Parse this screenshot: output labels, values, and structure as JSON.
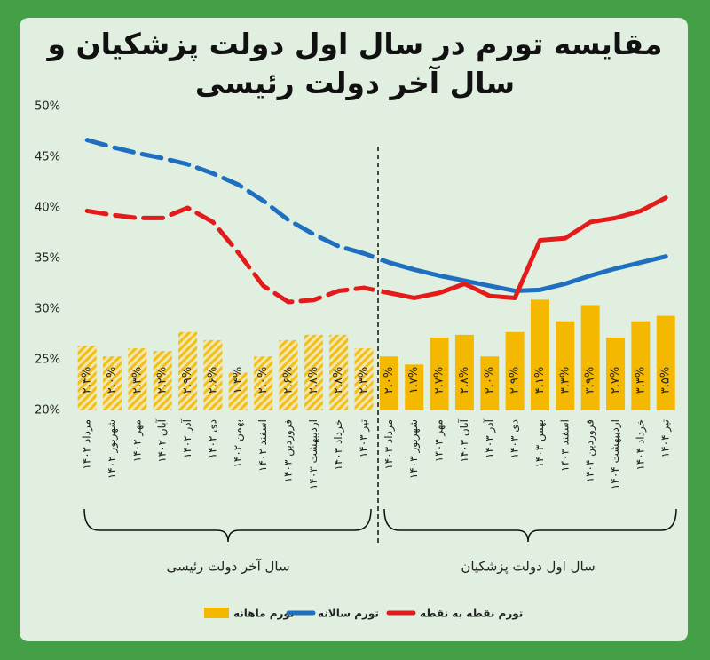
{
  "chart_data": {
    "type": "bar-line",
    "title": "مقایسه تورم در سال اول دولت پزشکیان و سال آخر دولت رئیسی",
    "groups": [
      {
        "label": "سال آخر دولت رئیسی",
        "categories": [
          "مرداد ۱۴۰۲",
          "شهریور ۱۴۰۲",
          "مهر ۱۴۰۲",
          "آبان ۱۴۰۲",
          "آذر ۱۴۰۲",
          "دی ۱۴۰۲",
          "بهمن ۱۴۰۲",
          "اسفند ۱۴۰۲",
          "فروردین ۱۴۰۳",
          "اردیبهشت ۱۴۰۳",
          "خرداد ۱۴۰۳",
          "تیر ۱۴۰۳"
        ]
      },
      {
        "label": "سال اول دولت پزشکیان",
        "categories": [
          "مرداد ۱۴۰۳",
          "شهریور ۱۴۰۳",
          "مهر ۱۴۰۳",
          "آبان ۱۴۰۳",
          "آذر ۱۴۰۳",
          "دی ۱۴۰۳",
          "بهمن ۱۴۰۳",
          "اسفند ۱۴۰۳",
          "فروردین ۱۴۰۴",
          "اردیبهشت ۱۴۰۴",
          "خرداد ۱۴۰۴",
          "تیر ۱۴۰۴"
        ]
      }
    ],
    "series": [
      {
        "name": "تورم ماهانه",
        "type": "bar",
        "axis": "y2",
        "color": "#f5b800",
        "values": [
          2.4,
          2.0,
          2.3,
          2.2,
          2.9,
          2.6,
          1.4,
          2.0,
          2.6,
          2.8,
          2.8,
          2.3,
          2.0,
          1.7,
          2.7,
          2.8,
          2.0,
          2.9,
          4.1,
          3.3,
          3.9,
          2.7,
          3.3,
          3.5
        ],
        "value_labels": [
          "۲.۴%",
          "۲.۰%",
          "۲.۳%",
          "۲.۲%",
          "۲.۹%",
          "۲.۶%",
          "۱.۴%",
          "۲.۰%",
          "۲.۶%",
          "۲.۸%",
          "۲.۸%",
          "۲.۳%",
          "۲.۰%",
          "۱.۷%",
          "۲.۷%",
          "۲.۸%",
          "۲.۰%",
          "۲.۹%",
          "۴.۱%",
          "۳.۳%",
          "۳.۹%",
          "۲.۷%",
          "۳.۳%",
          "۳.۵%"
        ]
      },
      {
        "name": "تورم سالانه",
        "type": "line",
        "color": "#1f6fc0",
        "values": [
          46.7,
          46.0,
          45.4,
          44.9,
          44.3,
          43.4,
          42.3,
          40.7,
          38.8,
          37.4,
          36.2,
          35.5,
          34.6,
          33.9,
          33.3,
          32.8,
          32.3,
          31.8,
          31.9,
          32.5,
          33.3,
          34.0,
          34.6,
          35.2
        ]
      },
      {
        "name": "تورم نقطه به نقطه",
        "type": "line",
        "color": "#e31b1b",
        "values": [
          39.7,
          39.3,
          39.0,
          39.0,
          40.0,
          38.6,
          35.6,
          32.3,
          30.7,
          30.9,
          31.8,
          32.1,
          31.6,
          31.1,
          31.6,
          32.5,
          31.3,
          31.1,
          36.8,
          37.0,
          38.6,
          39.0,
          39.7,
          41.0
        ]
      }
    ],
    "ylim": [
      20,
      50
    ],
    "yticks": [
      {
        "value": 20,
        "label": "20%"
      },
      {
        "value": 25,
        "label": "25%"
      },
      {
        "value": 30,
        "label": "30%"
      },
      {
        "value": 35,
        "label": "35%"
      },
      {
        "value": 40,
        "label": "40%"
      },
      {
        "value": 45,
        "label": "45%"
      },
      {
        "value": 50,
        "label": "50%"
      }
    ],
    "y2lim": [
      0,
      11.25
    ],
    "grid": false
  }
}
